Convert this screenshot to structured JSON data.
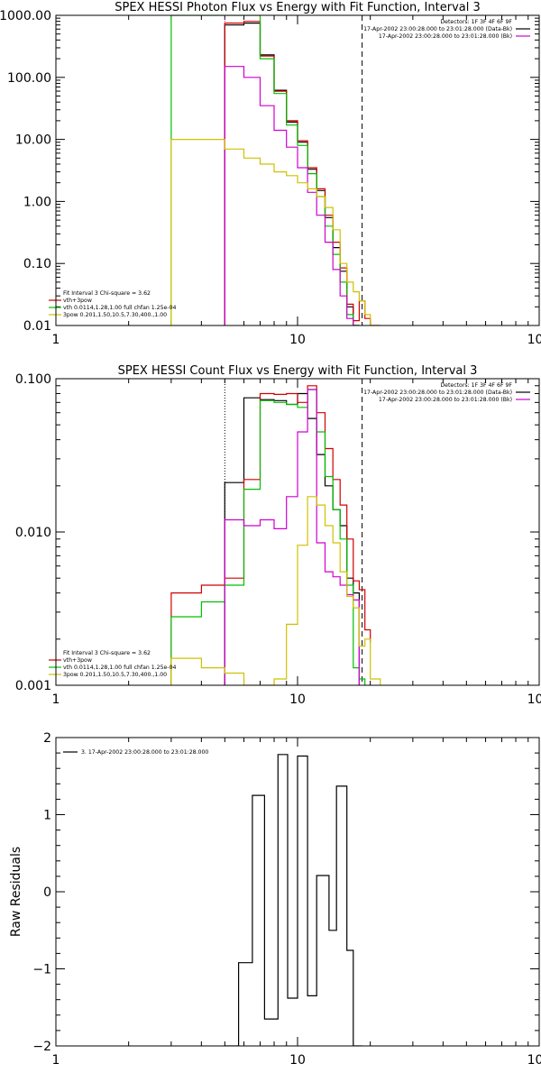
{
  "chart_data": [
    {
      "type": "line",
      "title": "SPEX HESSI Photon Flux vs Energy with Fit Function, Interval 3",
      "xlabel": "",
      "ylabel": "",
      "xscale": "log",
      "yscale": "log",
      "xlim": [
        1,
        100
      ],
      "ylim": [
        0.01,
        1000
      ],
      "xticks": [
        {
          "v": 1,
          "label": "1"
        },
        {
          "v": 10,
          "label": "10"
        },
        {
          "v": 100,
          "label": "100"
        }
      ],
      "yticks": [
        {
          "v": 0.01,
          "label": "0.01"
        },
        {
          "v": 0.1,
          "label": "0.10"
        },
        {
          "v": 1,
          "label": "1.00"
        },
        {
          "v": 10,
          "label": "10.00"
        },
        {
          "v": 100,
          "label": "100.00"
        },
        {
          "v": 1000,
          "label": "1000.00"
        }
      ],
      "header_lines": [
        "Detectors: 1F 3F 4F 6F 9F",
        "17-Apr-2002 23:00:28.000 to 23:01:28.000 (Data-Bk)",
        "17-Apr-2002 23:00:28.000 to 23:01:28.000 (Bk)"
      ],
      "header_colors": [
        "#000000",
        "#000000",
        "#d000d0"
      ],
      "legend_lines": [
        {
          "text": "Fit Interval 3   Chi-square = 3.62",
          "color": "#000000"
        },
        {
          "text": "vth+3pow",
          "color": "#d00000"
        },
        {
          "text": "vth 0.0114,1.28,1.00  full chfan 1.25e-04",
          "color": "#00c000"
        },
        {
          "text": "3pow 0.201,1.50,10.5,7.30,400.,1.00",
          "color": "#d0c000"
        }
      ],
      "vlines": [
        {
          "x": 5.0,
          "color": "#c000c0",
          "dash": "1,2"
        },
        {
          "x": 18.5,
          "color": "#000000",
          "dash": "6,4"
        }
      ],
      "series": [
        {
          "color": "#000000",
          "edges": [
            3,
            5,
            6,
            7,
            8,
            9,
            10,
            11,
            12,
            13,
            14,
            15,
            16,
            17,
            18
          ],
          "values": [
            null,
            700,
            750,
            230,
            62,
            19,
            9.0,
            3.3,
            1.5,
            0.55,
            0.18,
            0.075,
            0.02,
            0.01
          ]
        },
        {
          "color": "#d00000",
          "edges": [
            5,
            6,
            7,
            8,
            9,
            10,
            11,
            12,
            13,
            14,
            15,
            16,
            17,
            18,
            19,
            20,
            22
          ],
          "values": [
            750,
            800,
            220,
            60,
            20,
            9.5,
            3.5,
            1.6,
            0.6,
            0.22,
            0.085,
            0.022,
            0.012,
            0.025,
            0.013,
            0.01
          ]
        },
        {
          "color": "#00c000",
          "edges": [
            3,
            5,
            6,
            7,
            8,
            9,
            10,
            11,
            12,
            13,
            14,
            15,
            16,
            17,
            18
          ],
          "values": [
            1000,
            1000,
            1000,
            200,
            55,
            17,
            8.0,
            2.8,
            1.2,
            0.4,
            0.14,
            0.05,
            0.015,
            0.01
          ]
        },
        {
          "color": "#d000d0",
          "edges": [
            5,
            6,
            7,
            8,
            9,
            10,
            11,
            12,
            13,
            14,
            15,
            16,
            17,
            18
          ],
          "values": [
            150,
            100,
            35,
            14,
            7.5,
            3.5,
            1.4,
            0.6,
            0.22,
            0.08,
            0.03,
            0.013,
            0.01
          ]
        },
        {
          "color": "#d0c000",
          "edges": [
            3,
            4,
            5,
            6,
            7,
            8,
            9,
            10,
            11,
            12,
            13,
            14,
            15,
            16,
            17,
            18,
            19,
            20,
            22
          ],
          "values": [
            10,
            10,
            7,
            5,
            4,
            3,
            2.6,
            2.0,
            1.6,
            1.2,
            0.8,
            0.35,
            0.1,
            0.05,
            0.035,
            0.025,
            0.015,
            0.01
          ]
        }
      ]
    },
    {
      "type": "line",
      "title": "SPEX HESSI Count Flux vs Energy with Fit Function, Interval 3",
      "xlabel": "",
      "ylabel": "",
      "xscale": "log",
      "yscale": "log",
      "xlim": [
        1,
        100
      ],
      "ylim": [
        0.001,
        0.1
      ],
      "xticks": [
        {
          "v": 1,
          "label": "1"
        },
        {
          "v": 10,
          "label": "10"
        },
        {
          "v": 100,
          "label": "100"
        }
      ],
      "yticks": [
        {
          "v": 0.001,
          "label": "0.001"
        },
        {
          "v": 0.01,
          "label": "0.010"
        },
        {
          "v": 0.1,
          "label": "0.100"
        }
      ],
      "header_lines": [
        "Detectors: 1F 3F 4F 6F 9F",
        "17-Apr-2002 23:00:28.000 to 23:01:28.000 (Data-Bk)",
        "17-Apr-2002 23:00:28.000 to 23:01:28.000 (Bk)"
      ],
      "header_colors": [
        "#000000",
        "#000000",
        "#d000d0"
      ],
      "legend_lines": [
        {
          "text": "Fit Interval 3   Chi-square = 3.62",
          "color": "#000000"
        },
        {
          "text": "vth+3pow",
          "color": "#d00000"
        },
        {
          "text": "vth 0.0114,1.28,1.00  full chfan 1.25e-04",
          "color": "#00c000"
        },
        {
          "text": "3pow 0.201,1.50,10.5,7.30,400.,1.00",
          "color": "#d0c000"
        }
      ],
      "vlines": [
        {
          "x": 5.0,
          "color": "#000000",
          "dash": "1,2"
        },
        {
          "x": 18.5,
          "color": "#000000",
          "dash": "6,4"
        }
      ],
      "series": [
        {
          "color": "#000000",
          "edges": [
            5,
            6,
            7,
            8,
            9,
            10,
            11,
            12,
            13,
            14,
            15,
            16,
            17,
            18
          ],
          "values": [
            0.021,
            0.075,
            0.073,
            0.072,
            0.068,
            0.08,
            0.055,
            0.032,
            0.02,
            0.014,
            0.011,
            0.005,
            0.004
          ]
        },
        {
          "color": "#d00000",
          "edges": [
            3,
            4,
            5,
            6,
            7,
            8,
            9,
            10,
            11,
            12,
            13,
            14,
            15,
            16,
            17,
            18,
            19,
            20
          ],
          "values": [
            0.004,
            0.0045,
            0.005,
            0.022,
            0.08,
            0.079,
            0.08,
            0.07,
            0.09,
            0.06,
            0.035,
            0.022,
            0.015,
            0.009,
            0.0048,
            0.0042,
            0.0023,
            0.0019
          ]
        },
        {
          "color": "#00c000",
          "edges": [
            3,
            4,
            5,
            6,
            7,
            8,
            9,
            10,
            11,
            12,
            13,
            14,
            15,
            16,
            17,
            18,
            19
          ],
          "values": [
            0.0028,
            0.0035,
            0.0045,
            0.019,
            0.072,
            0.07,
            0.068,
            0.065,
            0.085,
            0.045,
            0.023,
            0.014,
            0.009,
            0.0045,
            0.0013,
            0.0011
          ]
        },
        {
          "color": "#d000d0",
          "edges": [
            5,
            6,
            7,
            8,
            9,
            10,
            11,
            12,
            13,
            14,
            15,
            16,
            17,
            18
          ],
          "values": [
            0.012,
            0.011,
            0.012,
            0.0105,
            0.017,
            0.045,
            0.085,
            0.0085,
            0.0055,
            0.0051,
            0.0045,
            0.0039,
            0.0036
          ]
        },
        {
          "color": "#d0c000",
          "edges": [
            3,
            4,
            5,
            6,
            7,
            8,
            9,
            10,
            11,
            12,
            13,
            14,
            15,
            16,
            17,
            18,
            19,
            20,
            22
          ],
          "values": [
            0.0015,
            0.0013,
            0.0012,
            0.001,
            0.001,
            0.0011,
            0.0025,
            0.0082,
            0.017,
            0.015,
            0.011,
            0.0085,
            0.0055,
            0.0038,
            0.0032,
            0.0018,
            0.002,
            0.0011
          ]
        }
      ]
    },
    {
      "type": "line",
      "title": "",
      "xlabel": "",
      "ylabel": "Raw Residuals",
      "xscale": "log",
      "yscale": "linear",
      "xlim": [
        1,
        100
      ],
      "ylim": [
        -2,
        2
      ],
      "xticks": [
        {
          "v": 1,
          "label": "1"
        },
        {
          "v": 10,
          "label": "10"
        },
        {
          "v": 100,
          "label": "100"
        }
      ],
      "yticks": [
        {
          "v": -2,
          "label": "−2"
        },
        {
          "v": -1,
          "label": "−1"
        },
        {
          "v": 0,
          "label": "0"
        },
        {
          "v": 1,
          "label": "1"
        },
        {
          "v": 2,
          "label": "2"
        }
      ],
      "header_lines": [],
      "header_colors": [],
      "legend_lines": [
        {
          "text": "3. 17-Apr-2002 23:00:28.000 to 23:01:28.000",
          "color": "#000000"
        }
      ],
      "vlines": [],
      "series": [
        {
          "color": "#000000",
          "edges": [
            5,
            5.7,
            6.5,
            7.3,
            8.3,
            9.1,
            10,
            11,
            12,
            13.5,
            14.5,
            16,
            17,
            18.5
          ],
          "values": [
            -2.0,
            -0.92,
            1.25,
            -1.65,
            1.78,
            -1.38,
            1.76,
            -1.35,
            0.21,
            -0.5,
            1.37,
            -0.76,
            -2.0
          ]
        }
      ]
    }
  ]
}
